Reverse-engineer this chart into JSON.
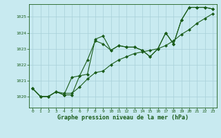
{
  "title": "Graphe pression niveau de la mer (hPa)",
  "bg_color": "#c8eaf0",
  "grid_color": "#a8d0d8",
  "line_color": "#1a5c1a",
  "marker_color": "#1a5c1a",
  "xlim": [
    -0.5,
    23.5
  ],
  "ylim": [
    1019.3,
    1025.8
  ],
  "yticks": [
    1020,
    1021,
    1022,
    1023,
    1024,
    1025
  ],
  "xticks": [
    0,
    1,
    2,
    3,
    4,
    5,
    6,
    7,
    8,
    9,
    10,
    11,
    12,
    13,
    14,
    15,
    16,
    17,
    18,
    19,
    20,
    21,
    22,
    23
  ],
  "series1": {
    "x": [
      0,
      1,
      2,
      3,
      4,
      5,
      6,
      7,
      8,
      9,
      10,
      11,
      12,
      13,
      14,
      15,
      16,
      17,
      18,
      19,
      20,
      21,
      22,
      23
    ],
    "y": [
      1020.5,
      1020.0,
      1020.0,
      1020.3,
      1020.1,
      1020.1,
      1021.3,
      1021.4,
      1023.6,
      1023.8,
      1022.9,
      1023.2,
      1023.1,
      1023.1,
      1022.9,
      1022.5,
      1023.0,
      1024.0,
      1023.3,
      1024.8,
      1025.6,
      1025.6,
      1025.6,
      1025.5
    ]
  },
  "series2": {
    "x": [
      0,
      1,
      2,
      3,
      4,
      5,
      6,
      7,
      8,
      9,
      10,
      11,
      12,
      13,
      14,
      15,
      16,
      17,
      18,
      19,
      20,
      21,
      22,
      23
    ],
    "y": [
      1020.5,
      1020.0,
      1020.0,
      1020.3,
      1020.1,
      1021.2,
      1021.3,
      1022.3,
      1023.5,
      1023.3,
      1022.9,
      1023.2,
      1023.1,
      1023.1,
      1022.9,
      1022.5,
      1023.0,
      1024.0,
      1023.3,
      1024.8,
      1025.6,
      1025.6,
      1025.6,
      1025.5
    ]
  },
  "series3": {
    "x": [
      0,
      1,
      2,
      3,
      4,
      5,
      6,
      7,
      8,
      9,
      10,
      11,
      12,
      13,
      14,
      15,
      16,
      17,
      18,
      19,
      20,
      21,
      22,
      23
    ],
    "y": [
      1020.5,
      1020.0,
      1020.0,
      1020.3,
      1020.2,
      1020.2,
      1020.6,
      1021.1,
      1021.5,
      1021.6,
      1022.0,
      1022.3,
      1022.5,
      1022.7,
      1022.8,
      1022.9,
      1023.0,
      1023.2,
      1023.5,
      1023.9,
      1024.2,
      1024.6,
      1024.9,
      1025.2
    ]
  },
  "figsize": [
    3.2,
    2.0
  ],
  "dpi": 100
}
